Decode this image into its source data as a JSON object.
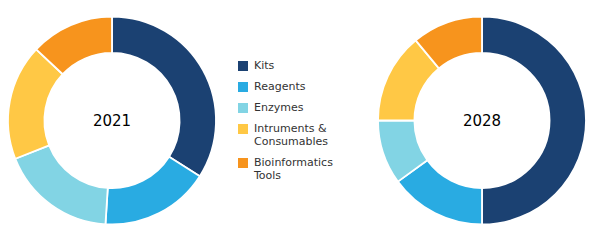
{
  "chart_data": {
    "type": "pie",
    "categories": [
      "Kits",
      "Reagents",
      "Enzymes",
      "Intruments &\nConsumables",
      "Bioinformatics\nTools"
    ],
    "colors": [
      "#1b4172",
      "#29abe2",
      "#82d4e4",
      "#ffc845",
      "#f7941d"
    ],
    "series": [
      {
        "name": "2021",
        "values": [
          34,
          17,
          18,
          18,
          13
        ]
      },
      {
        "name": "2028",
        "values": [
          50,
          15,
          10,
          14,
          11
        ]
      }
    ],
    "legend": "center"
  }
}
